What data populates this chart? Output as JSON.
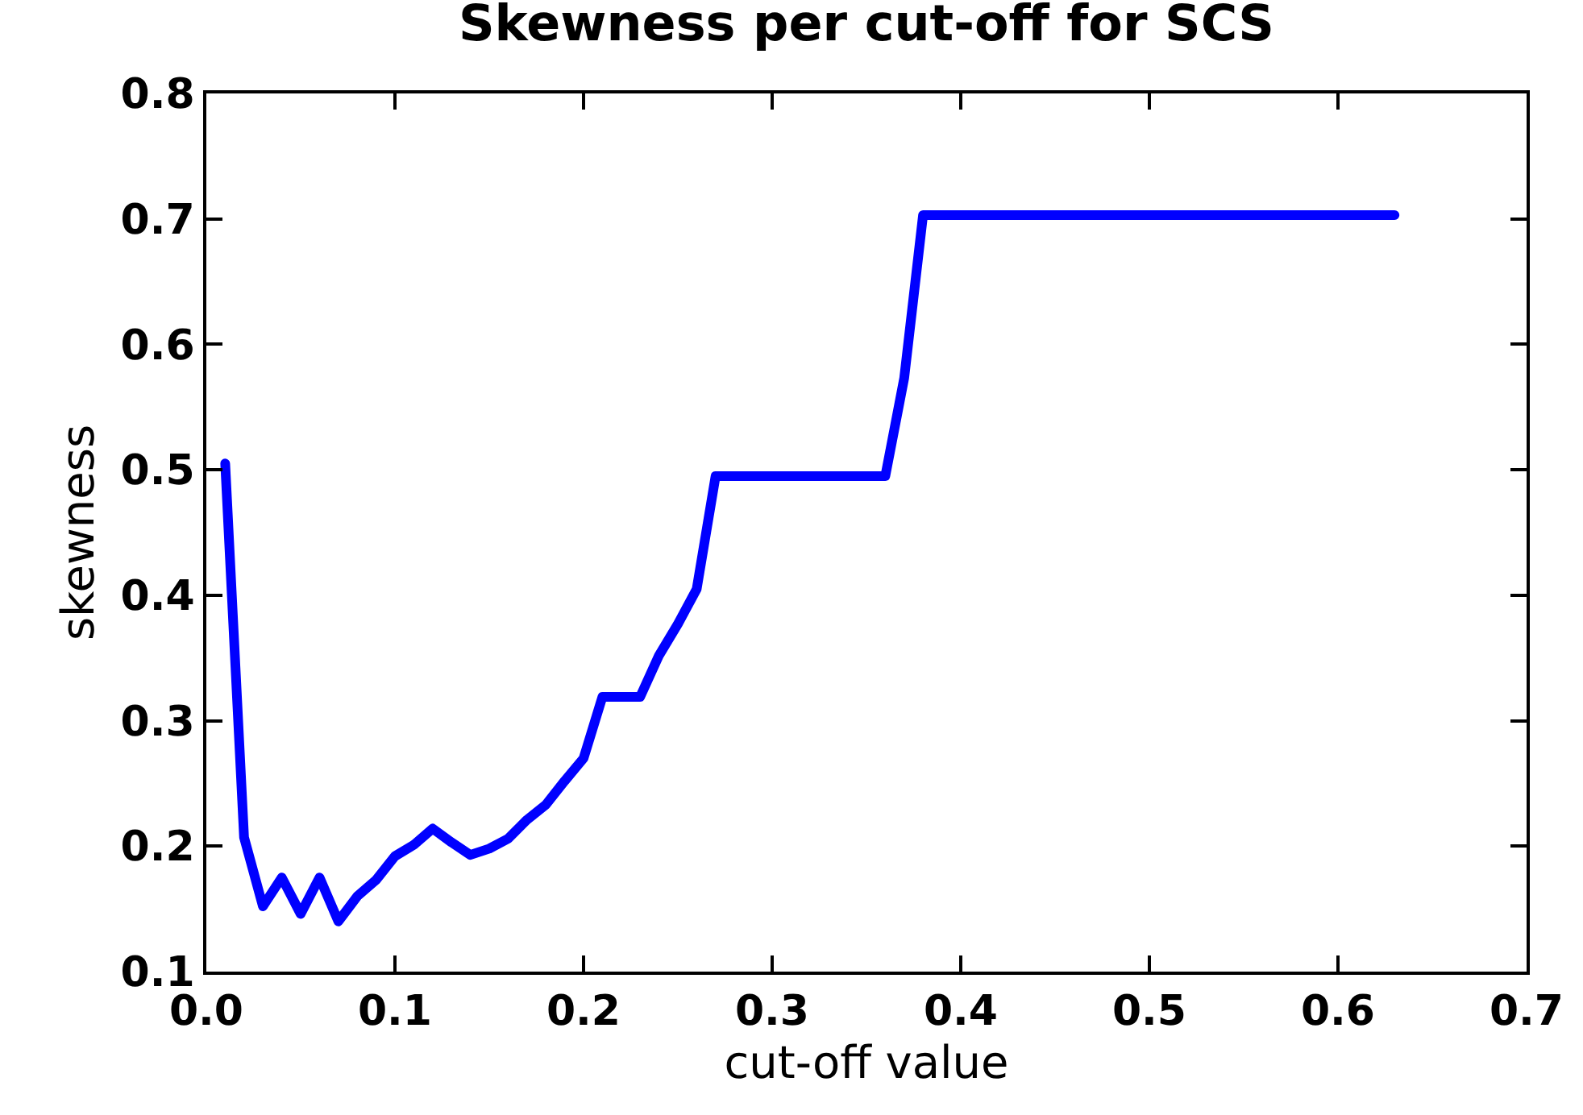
{
  "chart_data": {
    "type": "line",
    "title": "Skewness per cut-off for SCS",
    "xlabel": "cut-off value",
    "ylabel": "skewness",
    "x": [
      0.01,
      0.02,
      0.03,
      0.04,
      0.05,
      0.06,
      0.07,
      0.08,
      0.09,
      0.1,
      0.11,
      0.12,
      0.13,
      0.14,
      0.15,
      0.16,
      0.17,
      0.18,
      0.19,
      0.2,
      0.21,
      0.23,
      0.24,
      0.25,
      0.26,
      0.27,
      0.36,
      0.37,
      0.38,
      0.63
    ],
    "series": [
      {
        "color": "#0000ff",
        "values": [
          0.505,
          0.207,
          0.152,
          0.175,
          0.146,
          0.175,
          0.14,
          0.16,
          0.173,
          0.192,
          0.201,
          0.214,
          0.203,
          0.193,
          0.198,
          0.206,
          0.221,
          0.233,
          0.252,
          0.27,
          0.319,
          0.319,
          0.352,
          0.377,
          0.405,
          0.495,
          0.495,
          0.573,
          0.703,
          0.703
        ]
      }
    ],
    "xlim": [
      0,
      0.7
    ],
    "xticks": [
      {
        "value": 0,
        "label": "0.0"
      },
      0.1,
      0.2,
      0.3,
      0.4,
      0.5,
      0.6,
      0.7
    ],
    "ylim": [
      0.1,
      0.8
    ],
    "yticks": [
      0.1,
      0.2,
      0.3,
      0.4,
      0.5,
      0.6,
      0.7,
      0.8
    ],
    "grid": false,
    "marker": "none",
    "line_style": "solid"
  }
}
